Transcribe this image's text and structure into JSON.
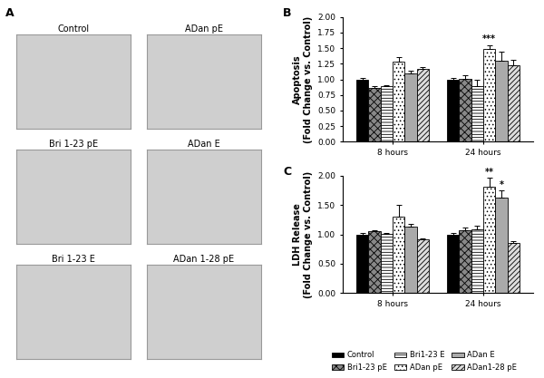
{
  "image_panel": {
    "panel_label": "A",
    "images": [
      "Control",
      "ADan pE",
      "Bri 1-23 pE",
      "ADan E",
      "Bri 1-23 E",
      "ADan 1-28 pE"
    ]
  },
  "chart_data": [
    {
      "type": "bar",
      "panel_label": "B",
      "y_label": "Apoptosis\n(Fold Change vs. Control)",
      "categories": [
        "8 hours",
        "24 hours"
      ],
      "ylim": [
        0,
        2.0
      ],
      "yticks": [
        {
          "value": 0,
          "label": "0.00"
        },
        {
          "value": 0.25,
          "label": "0.25"
        },
        {
          "value": 0.5,
          "label": "0.50"
        },
        {
          "value": 0.75,
          "label": "0.75"
        },
        {
          "value": 1.0,
          "label": "1.00"
        },
        {
          "value": 1.25,
          "label": "1.25"
        },
        {
          "value": 1.5,
          "label": "1.50"
        },
        {
          "value": 1.75,
          "label": "1.75"
        },
        {
          "value": 2.0,
          "label": "2.00"
        }
      ],
      "series": [
        {
          "name": "Control",
          "color": "#000000",
          "values": [
            1.0,
            1.0
          ],
          "errors": [
            0.03,
            0.02
          ]
        },
        {
          "name": "Bri1-23 pE",
          "color": "#888888",
          "values": [
            0.87,
            1.01
          ],
          "errors": [
            0.02,
            0.06
          ]
        },
        {
          "name": "Bri1-23 E",
          "color": "#ffffff",
          "values": [
            0.89,
            0.89
          ],
          "errors": [
            0.02,
            0.1
          ]
        },
        {
          "name": "ADan pE",
          "color": "#ffffff",
          "values": [
            1.28,
            1.49
          ],
          "errors": [
            0.08,
            0.06
          ]
        },
        {
          "name": "ADan E",
          "color": "#aaaaaa",
          "values": [
            1.09,
            1.3
          ],
          "errors": [
            0.05,
            0.14
          ]
        },
        {
          "name": "ADan1-28 pE",
          "color": "#dddddd",
          "values": [
            1.17,
            1.22
          ],
          "errors": [
            0.02,
            0.1
          ]
        }
      ],
      "annotations": [
        {
          "text": "***",
          "category": "24 hours",
          "series": "ADan pE"
        }
      ]
    },
    {
      "type": "bar",
      "panel_label": "C",
      "y_label": "LDH Release\n(Fold Change vs. Control)",
      "categories": [
        "8 hours",
        "24 hours"
      ],
      "ylim": [
        0,
        2.0
      ],
      "yticks": [
        {
          "value": 0,
          "label": "0.00"
        },
        {
          "value": 0.5,
          "label": "0.50"
        },
        {
          "value": 1.0,
          "label": "1.00"
        },
        {
          "value": 1.5,
          "label": "1.50"
        },
        {
          "value": 2.0,
          "label": "2.00"
        }
      ],
      "series": [
        {
          "name": "Control",
          "color": "#000000",
          "values": [
            1.0,
            1.0
          ],
          "errors": [
            0.03,
            0.03
          ]
        },
        {
          "name": "Bri1-23 pE",
          "color": "#888888",
          "values": [
            1.05,
            1.07
          ],
          "errors": [
            0.02,
            0.04
          ]
        },
        {
          "name": "Bri1-23 E",
          "color": "#ffffff",
          "values": [
            1.01,
            1.09
          ],
          "errors": [
            0.02,
            0.05
          ]
        },
        {
          "name": "ADan pE",
          "color": "#ffffff",
          "values": [
            1.3,
            1.82
          ],
          "errors": [
            0.2,
            0.15
          ]
        },
        {
          "name": "ADan E",
          "color": "#aaaaaa",
          "values": [
            1.13,
            1.62
          ],
          "errors": [
            0.05,
            0.13
          ]
        },
        {
          "name": "ADan1-28 pE",
          "color": "#dddddd",
          "values": [
            0.91,
            0.86
          ],
          "errors": [
            0.02,
            0.02
          ]
        }
      ],
      "annotations": [
        {
          "text": "**",
          "category": "24 hours",
          "series": "ADan pE"
        },
        {
          "text": "*",
          "category": "24 hours",
          "series": "ADan E"
        }
      ],
      "legend": "lower"
    }
  ]
}
